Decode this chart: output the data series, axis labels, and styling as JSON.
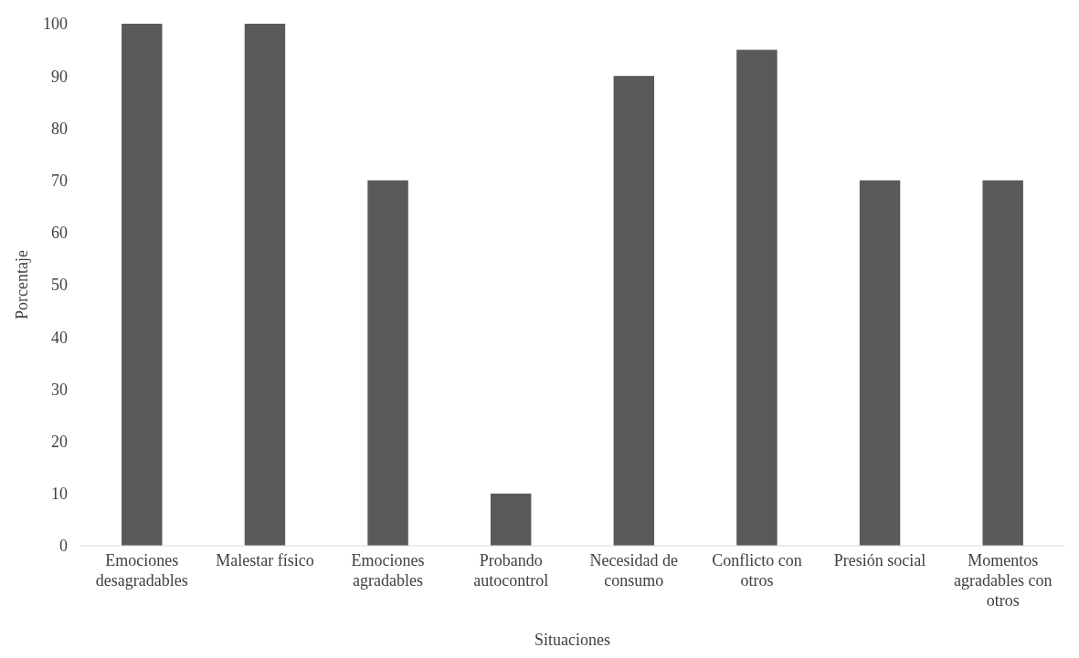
{
  "chart_data": {
    "type": "bar",
    "xlabel": "Situaciones",
    "ylabel": "Porcentaje",
    "categories": [
      "Emociones desagradables",
      "Malestar físico",
      "Emociones agradables",
      "Probando autocontrol",
      "Necesidad de consumo",
      "Conflicto con otros",
      "Presión social",
      "Momentos agradables con otros"
    ],
    "values": [
      100,
      100,
      70,
      10,
      90,
      95,
      70,
      70
    ],
    "color": "#595959",
    "ylim": [
      0,
      100
    ],
    "yticks": [
      0,
      10,
      20,
      30,
      40,
      50,
      60,
      70,
      80,
      90,
      100
    ],
    "grid": false
  }
}
